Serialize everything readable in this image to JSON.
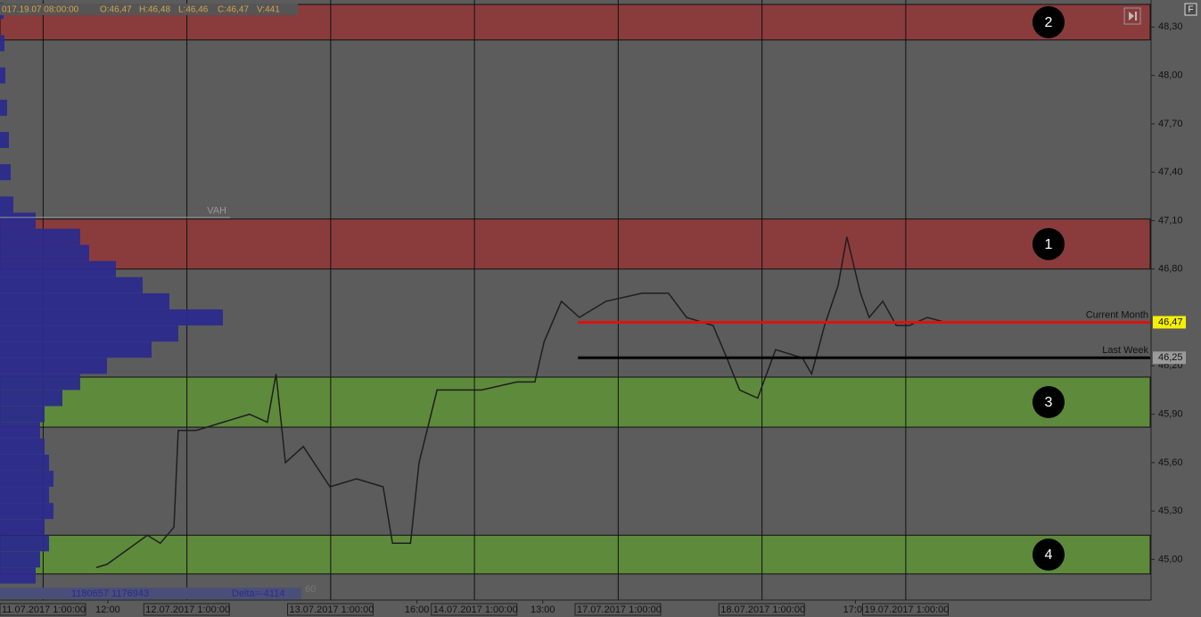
{
  "info_bar": {
    "time": "017.19.07 08:00:00",
    "fields": [
      "O:46,47",
      "H:46,48",
      "L:46,46",
      "C:46,47",
      "V:441"
    ]
  },
  "corner_button": "F",
  "footer": {
    "volumes": "1180657 1176943",
    "delta": "Delta=-4114",
    "period": "60"
  },
  "chart_data": {
    "type": "line",
    "xlim": [
      0,
      160
    ],
    "ylim": [
      44.82,
      48.44
    ],
    "yticks": [
      {
        "value": 48.3,
        "label": "48,30"
      },
      {
        "value": 48.0,
        "label": "48,00"
      },
      {
        "value": 47.7,
        "label": "47,70"
      },
      {
        "value": 47.4,
        "label": "47,40"
      },
      {
        "value": 47.1,
        "label": "47,10"
      },
      {
        "value": 46.8,
        "label": "46,80"
      },
      {
        "value": 46.2,
        "label": "46,20"
      },
      {
        "value": 45.9,
        "label": "45,90"
      },
      {
        "value": 45.6,
        "label": "45,60"
      },
      {
        "value": 45.3,
        "label": "45,30"
      },
      {
        "value": 45.0,
        "label": "45,00"
      }
    ],
    "x_grid": [
      6,
      26,
      46,
      66,
      86,
      106,
      126
    ],
    "xticks": [
      {
        "value": 0,
        "label": "11.07.2017 1:00:00"
      },
      {
        "value": 15,
        "label": "12:00"
      },
      {
        "value": 20,
        "label": "12.07.2017 1:00:00"
      },
      {
        "value": 40,
        "label": "13.07.2017 1:00:00"
      },
      {
        "value": 58,
        "label": "16:00"
      },
      {
        "value": 60,
        "label": "14.07.2017 1:00:00"
      },
      {
        "value": 75.5,
        "label": "13:00"
      },
      {
        "value": 80,
        "label": "17.07.2017 1:00:00"
      },
      {
        "value": 100,
        "label": "18.07.2017 1:00:00"
      },
      {
        "value": 119,
        "label": "17:00"
      },
      {
        "value": 120,
        "label": "19.07.2017 1:00:00"
      }
    ],
    "x": [
      13.4,
      14.9,
      20.5,
      22.3,
      24.2,
      24.8,
      27.3,
      31,
      34.7,
      37.2,
      38.4,
      39.7,
      42.2,
      45.9,
      49.6,
      53.3,
      54.6,
      57.1,
      58.3,
      60.8,
      67,
      71.9,
      74.4,
      75.7,
      78.1,
      80.6,
      84.3,
      89.3,
      93,
      95.5,
      99.2,
      101.1,
      102.9,
      105.4,
      107.9,
      111.6,
      112.9,
      114.7,
      116.6,
      117.8,
      119.7,
      120.9,
      122.8,
      124.7,
      126.5,
      129,
      131.5
    ],
    "series": [
      {
        "color": "#1e1e1e",
        "values": [
          44.95,
          44.97,
          45.15,
          45.1,
          45.2,
          45.8,
          45.8,
          45.85,
          45.9,
          45.85,
          46.15,
          45.6,
          45.7,
          45.45,
          45.5,
          45.45,
          45.1,
          45.1,
          45.6,
          46.05,
          46.05,
          46.1,
          46.1,
          46.35,
          46.6,
          46.5,
          46.6,
          46.65,
          46.65,
          46.5,
          46.45,
          46.25,
          46.05,
          46.0,
          46.3,
          46.25,
          46.15,
          46.45,
          46.7,
          47.0,
          46.65,
          46.5,
          46.6,
          46.45,
          46.45,
          46.5,
          46.47
        ]
      }
    ],
    "zones": [
      {
        "label": "2",
        "from": 48.22,
        "to": 48.44,
        "color": "#8a3c3c"
      },
      {
        "label": "1",
        "from": 46.8,
        "to": 47.11,
        "color": "#8a3c3c"
      },
      {
        "label": "3",
        "from": 45.82,
        "to": 46.13,
        "color": "#5e8a3c"
      },
      {
        "label": "4",
        "from": 44.91,
        "to": 45.15,
        "color": "#5e8a3c"
      }
    ],
    "levels": [
      {
        "name": "Current Month",
        "value": 46.47,
        "label": "46,47",
        "color": "#e01010",
        "start": 80.4,
        "tag_color": "#f5f000"
      },
      {
        "name": "Last Week",
        "value": 46.25,
        "label": "46,25",
        "color": "#000000",
        "start": 80.4,
        "tag_color": "#9a9a9a"
      }
    ],
    "vah": {
      "label": "VAH",
      "value": 47.12,
      "end": 32
    },
    "profile": {
      "color": "#2b2b8c",
      "prices": [
        44.9,
        45.0,
        45.1,
        45.2,
        45.3,
        45.4,
        45.5,
        45.6,
        45.7,
        45.8,
        45.9,
        46.0,
        46.1,
        46.2,
        46.3,
        46.4,
        46.5,
        46.6,
        46.7,
        46.8,
        46.9,
        47.0,
        47.1,
        47.2,
        47.4,
        47.6,
        47.8,
        48.0,
        48.2,
        48.4
      ],
      "values": [
        40,
        45,
        55,
        50,
        60,
        55,
        60,
        55,
        50,
        45,
        50,
        70,
        90,
        120,
        170,
        200,
        250,
        190,
        160,
        130,
        100,
        90,
        40,
        15,
        12,
        10,
        8,
        6,
        5,
        4
      ]
    }
  }
}
